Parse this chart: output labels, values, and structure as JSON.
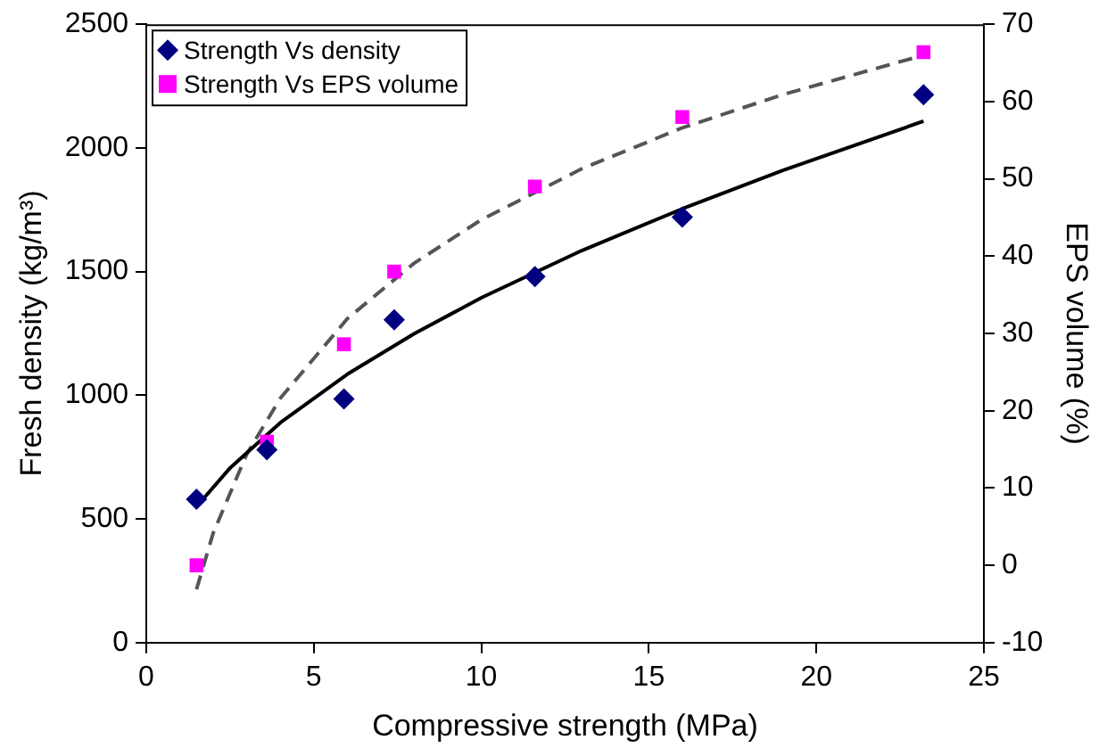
{
  "chart_data": {
    "type": "scatter",
    "xlabel": "Compressive strength (MPa)",
    "ylabel": "Fresh density (kg/m³)",
    "y2label": "EPS volume (%)",
    "xlim": [
      0,
      25
    ],
    "xticks": [
      0,
      5,
      10,
      15,
      20,
      25
    ],
    "ylim": [
      0,
      2500
    ],
    "yticks": [
      0,
      500,
      1000,
      1500,
      2000,
      2500
    ],
    "y2lim": [
      -10,
      70
    ],
    "y2ticks": [
      -10,
      0,
      10,
      20,
      30,
      40,
      50,
      60,
      70
    ],
    "grid": false,
    "legend": "top left",
    "series": [
      {
        "name": "Strength Vs density",
        "marker": "diamond",
        "color": "#000080",
        "x": [
          1.5,
          3.6,
          5.9,
          7.4,
          11.6,
          16,
          23.2
        ],
        "values": [
          580,
          780,
          985,
          1305,
          1480,
          1720,
          2215
        ]
      },
      {
        "name": "Strength Vs EPS volume",
        "marker": "square",
        "color": "#ff00ff",
        "axis": "y2",
        "x": [
          1.5,
          3.6,
          5.9,
          7.4,
          11.6,
          16,
          23.2
        ],
        "values": [
          0,
          16,
          28.6,
          38,
          49,
          58,
          66.4
        ]
      },
      {
        "type": "line",
        "marker": "none",
        "line_style": "solid",
        "color": "#000000",
        "x": [
          1.5,
          2.5,
          4,
          6,
          8,
          10,
          13,
          16,
          19,
          23.2
        ],
        "values": [
          550,
          706,
          889,
          1085,
          1249,
          1394,
          1585,
          1754,
          1909,
          2108
        ]
      },
      {
        "type": "line",
        "marker": "none",
        "line_style": "dashed",
        "color": "#555555",
        "axis": "y2",
        "x": [
          1.5,
          2,
          3,
          4,
          6,
          8,
          10,
          13,
          16,
          19,
          23.2
        ],
        "values": [
          -3.1,
          4.2,
          14.4,
          21.6,
          31.9,
          39.1,
          44.7,
          51.3,
          56.6,
          60.9,
          66
        ]
      }
    ]
  }
}
